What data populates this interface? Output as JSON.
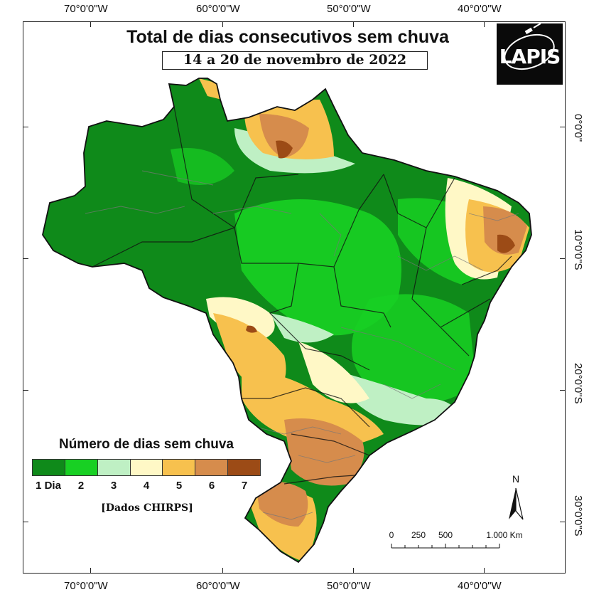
{
  "title": "Total de dias consecutivos sem chuva",
  "subtitle": "14 a 20 de novembro de 2022",
  "logo": {
    "text": "LAPIS"
  },
  "graticule": {
    "longitudes": [
      "70°0'0\"W",
      "60°0'0\"W",
      "50°0'0\"W",
      "40°0'0\"W"
    ],
    "latitudes": [
      "0°0'0\"",
      "10°0'0\"S",
      "20°0'0\"S",
      "30°0'0\"S"
    ]
  },
  "legend": {
    "title": "Número de dias sem chuva",
    "classes": [
      {
        "label": "1 Dia",
        "color": "#0f8a1a"
      },
      {
        "label": "2",
        "color": "#18d023"
      },
      {
        "label": "3",
        "color": "#bff0c4"
      },
      {
        "label": "4",
        "color": "#fff8c6"
      },
      {
        "label": "5",
        "color": "#f7c14e"
      },
      {
        "label": "6",
        "color": "#d68c4c"
      },
      {
        "label": "7",
        "color": "#9c4b16"
      }
    ],
    "source": "[Dados CHIRPS]"
  },
  "scale_bar": {
    "labels": [
      "0",
      "250",
      "500",
      "1.000 Km"
    ]
  },
  "north_arrow": {
    "label": "N"
  },
  "colors": {
    "border": "#777777",
    "country_outline": "#111111"
  }
}
